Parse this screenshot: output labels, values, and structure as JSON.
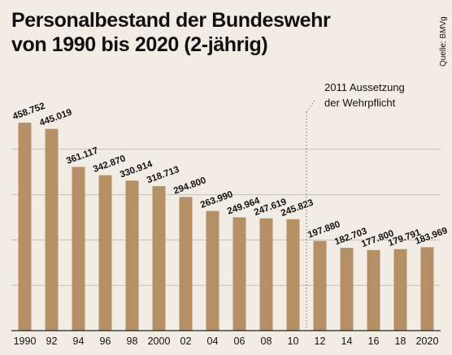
{
  "title": "Personalbestand der Bundeswehr\nvon 1990 bis 2020 (2-jährig)",
  "source": "Quelle: BMVg",
  "colors": {
    "bar": "#b58f66",
    "background": "#f2ede4",
    "grid": "#c7bfb2",
    "text": "#111111",
    "annotation_line": "#7a7066"
  },
  "chart_data": {
    "type": "bar",
    "title": "Personalbestand der Bundeswehr von 1990 bis 2020 (2-jährig)",
    "categories": [
      "1990",
      "92",
      "94",
      "96",
      "98",
      "2000",
      "02",
      "04",
      "06",
      "08",
      "10",
      "12",
      "14",
      "16",
      "18",
      "2020"
    ],
    "values": [
      458752,
      445019,
      361117,
      342870,
      330914,
      318713,
      294800,
      263990,
      249964,
      247619,
      245823,
      197880,
      182703,
      177800,
      179791,
      183969
    ],
    "labels": [
      "458.752",
      "445.019",
      "361.117",
      "342.870",
      "330.914",
      "318.713",
      "294.800",
      "263.990",
      "249.964",
      "247.619",
      "245.823",
      "197.880",
      "182.703",
      "177.800",
      "179.791",
      "183.969"
    ],
    "ylim": [
      0,
      500000
    ],
    "grid": true,
    "annotation": {
      "after_category": "10",
      "lines": [
        "2011 Aussetzung",
        "der Wehrpflicht"
      ]
    }
  }
}
